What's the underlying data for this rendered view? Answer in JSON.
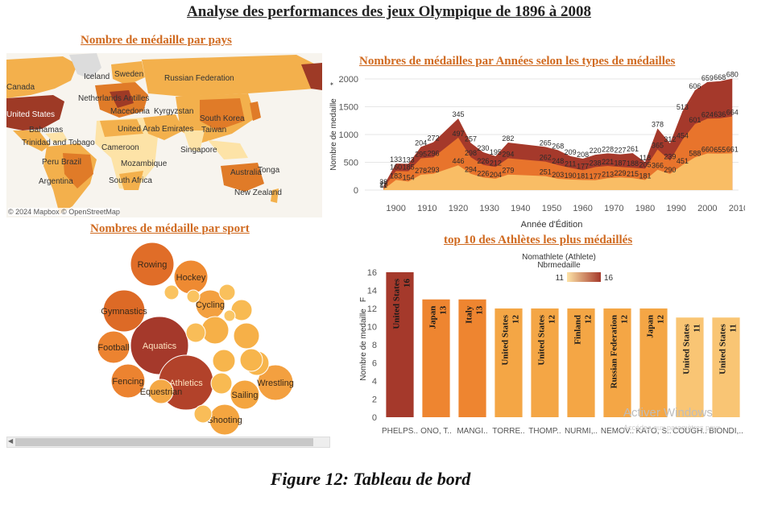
{
  "dashboard": {
    "title": "Analyse des performances des jeux Olympique de 1896 à 2008",
    "caption": "Figure 12: Tableau de bord",
    "watermark": "Activer Windows",
    "watermark_sub": "Accédez aux paramètres pour"
  },
  "map": {
    "title": "Nombre de médaille par pays",
    "credit": "© 2024 Mapbox © OpenStreetMap",
    "labels": [
      "Canada",
      "Iceland",
      "Sweden",
      "Russian Federation",
      "Netherlands Antilles",
      "Macedonia",
      "Kyrgyzstan",
      "United States",
      "Bahamas",
      "United Arab Emirates",
      "Taiwan",
      "South Korea",
      "Trinidad and Tobago",
      "Cameroon",
      "Singapore",
      "Peru",
      "Brazil",
      "Mozambique",
      "Australia",
      "Tonga",
      "South Africa",
      "Argentina",
      "New Zealand"
    ],
    "colors": {
      "low": "#fde3a7",
      "mid": "#f3b04c",
      "high": "#e07b28",
      "top": "#9e3a26",
      "sea": "#f7f4ee",
      "none": "#dcdcdc"
    }
  },
  "chart_data": [
    {
      "type": "area",
      "title": "Nombres de médailles par Années selon les types de médailles",
      "xlabel": "Année d'Édition",
      "ylabel": "Nombre de medaille",
      "ylabel_mark": "*",
      "xlim": [
        1890,
        2010
      ],
      "ylim": [
        0,
        2000
      ],
      "xticks": [
        1900,
        1910,
        1920,
        1930,
        1940,
        1950,
        1960,
        1970,
        1980,
        1990,
        2000,
        2010
      ],
      "yticks": [
        0,
        500,
        1000,
        1500,
        2000
      ],
      "x": [
        1896,
        1900,
        1904,
        1908,
        1912,
        1920,
        1924,
        1928,
        1932,
        1936,
        1948,
        1952,
        1956,
        1960,
        1964,
        1968,
        1972,
        1976,
        1980,
        1984,
        1988,
        1992,
        1996,
        2000,
        2004,
        2008
      ],
      "series": [
        {
          "values": [
            11,
            183,
            154,
            278,
            293,
            446,
            294,
            226,
            204,
            279,
            251,
            203,
            190,
            181,
            177,
            213,
            229,
            215,
            181,
            366,
            290,
            451,
            588,
            660,
            655,
            661
          ]
        },
        {
          "values": [
            25,
            160,
            185,
            295,
            296,
            497,
            298,
            226,
            212,
            294,
            262,
            248,
            211,
            177,
            238,
            221,
            187,
            188,
            205,
            365,
            239,
            454,
            601,
            624,
            636,
            664
          ]
        },
        {
          "values": [
            38,
            133,
            133,
            204,
            272,
            345,
            257,
            230,
            195,
            282,
            265,
            268,
            209,
            208,
            220,
            228,
            227,
            261,
            118,
            378,
            312,
            513,
            606,
            659,
            668,
            680
          ]
        }
      ],
      "colors": [
        "#f9bd65",
        "#e8742c",
        "#a5392b"
      ]
    },
    {
      "type": "bubble",
      "title": "Nombres de médaille par sport",
      "bubbles": [
        {
          "label": "Aquatics",
          "r": 36,
          "color": "#a5392b"
        },
        {
          "label": "Athletics",
          "r": 34,
          "color": "#b2422a"
        },
        {
          "label": "Rowing",
          "r": 27,
          "color": "#e06d28"
        },
        {
          "label": "Gymnastics",
          "r": 26,
          "color": "#dd6a26"
        },
        {
          "label": "Hockey",
          "r": 21,
          "color": "#ee8a32"
        },
        {
          "label": "Football",
          "r": 20,
          "color": "#ec8330"
        },
        {
          "label": "Fencing",
          "r": 21,
          "color": "#ec8330"
        },
        {
          "label": "Cycling",
          "r": 18,
          "color": "#f3a040"
        },
        {
          "label": "Wrestling",
          "r": 22,
          "color": "#f3a040"
        },
        {
          "label": "Sailing",
          "r": 18,
          "color": "#f4a540"
        },
        {
          "label": "Shooting",
          "r": 19,
          "color": "#f4a540"
        },
        {
          "label": "Equestrian",
          "r": 15,
          "color": "#f4a845"
        },
        {
          "label": "",
          "r": 17,
          "color": "#f6b048"
        },
        {
          "label": "",
          "r": 16,
          "color": "#f6b048"
        },
        {
          "label": "",
          "r": 15,
          "color": "#f7b54c"
        },
        {
          "label": "",
          "r": 14,
          "color": "#f7b54c"
        },
        {
          "label": "",
          "r": 14,
          "color": "#f7b54c"
        },
        {
          "label": "",
          "r": 13,
          "color": "#f8ba52"
        },
        {
          "label": "",
          "r": 13,
          "color": "#f8ba52"
        },
        {
          "label": "",
          "r": 12,
          "color": "#f9bd58"
        },
        {
          "label": "",
          "r": 11,
          "color": "#f9bd58"
        },
        {
          "label": "",
          "r": 10,
          "color": "#f9c05c"
        },
        {
          "label": "",
          "r": 9,
          "color": "#fac360"
        },
        {
          "label": "",
          "r": 8,
          "color": "#fac360"
        },
        {
          "label": "",
          "r": 7,
          "color": "#fac666"
        }
      ]
    },
    {
      "type": "bar",
      "title": "top 10 des Athlètes les plus médaillés",
      "legend_title": "Nomathlete (Athlete)",
      "legend_subtitle": "Nbrmedaille",
      "legend_min": "11",
      "legend_max": "16",
      "ylabel": "Nombre de medaille",
      "ylabel_mark": "F",
      "ylim": [
        0,
        16
      ],
      "yticks": [
        0,
        2,
        4,
        6,
        8,
        10,
        12,
        14,
        16
      ],
      "categories": [
        "PHELPS..",
        "ONO, T..",
        "MANGI..",
        "TORRE..",
        "THOMP..",
        "NURMI,..",
        "NEMOV..",
        "KATO, S..",
        "COUGH..",
        "BIONDI,.."
      ],
      "countries": [
        "United States",
        "Japan",
        "Italy",
        "United States",
        "United States",
        "Finland",
        "Russian Federation",
        "Japan",
        "United States",
        "United States"
      ],
      "values": [
        16,
        13,
        13,
        12,
        12,
        12,
        12,
        12,
        11,
        11
      ],
      "colors": [
        "#a5392b",
        "#ee8530",
        "#ee8530",
        "#f4a645",
        "#f4a645",
        "#f4a645",
        "#f4a645",
        "#f4a645",
        "#f9c574",
        "#f9c574"
      ]
    }
  ]
}
